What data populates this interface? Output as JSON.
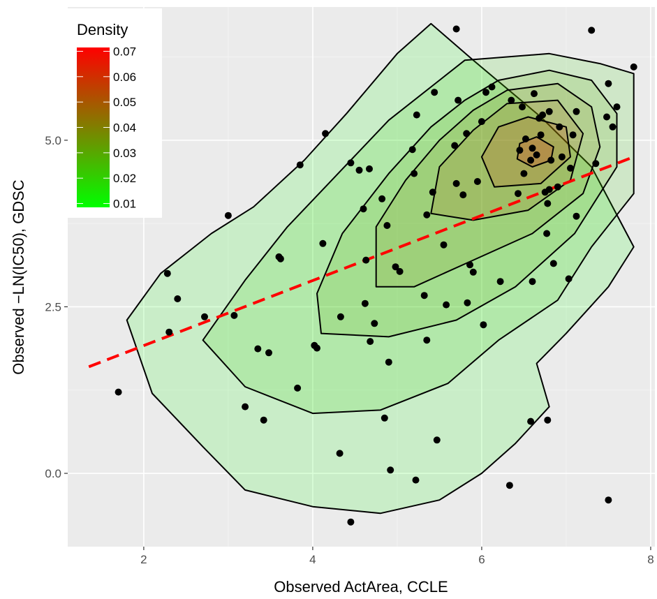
{
  "chart_data": {
    "type": "scatter",
    "title": "",
    "xlabel": "Observed ActArea, CCLE",
    "ylabel": "Observed −LN(IC50), GDSC",
    "xlim": [
      1.1,
      8.05
    ],
    "ylim": [
      -1.1,
      7.0
    ],
    "x_ticks": [
      2,
      4,
      6,
      8
    ],
    "x_tick_labels": [
      "2",
      "4",
      "6",
      "8"
    ],
    "y_ticks": [
      0.0,
      2.5,
      5.0
    ],
    "y_tick_labels": [
      "0.0",
      "2.5",
      "5.0"
    ],
    "grid": true,
    "background": "#ebebeb",
    "legend": {
      "title": "Density",
      "position": "top-left",
      "labels": [
        "0.07",
        "0.06",
        "0.05",
        "0.04",
        "0.03",
        "0.02",
        "0.01"
      ],
      "values": [
        0.07,
        0.06,
        0.05,
        0.04,
        0.03,
        0.02,
        0.01
      ],
      "range": [
        0.0085,
        0.0715
      ],
      "colors": {
        "low": "#00ff00",
        "high": "#ff0000"
      }
    },
    "regression_line": {
      "x": [
        1.35,
        7.8
      ],
      "y": [
        1.6,
        4.75
      ],
      "color": "#ff0000",
      "style": "dashed"
    },
    "density_contours": [
      {
        "level": 0.01,
        "points": [
          [
            5.4,
            6.75
          ],
          [
            5.9,
            6.2
          ],
          [
            6.7,
            5.35
          ],
          [
            7.3,
            4.6
          ],
          [
            7.8,
            3.4
          ],
          [
            7.5,
            2.8
          ],
          [
            7.0,
            2.1
          ],
          [
            6.65,
            1.65
          ],
          [
            6.8,
            1.0
          ],
          [
            6.4,
            0.45
          ],
          [
            6.0,
            0.0
          ],
          [
            5.5,
            -0.4
          ],
          [
            4.8,
            -0.6
          ],
          [
            4.0,
            -0.5
          ],
          [
            3.2,
            -0.25
          ],
          [
            2.7,
            0.4
          ],
          [
            2.1,
            1.2
          ],
          [
            1.8,
            2.3
          ],
          [
            2.2,
            3.0
          ],
          [
            2.8,
            3.6
          ],
          [
            3.3,
            4.0
          ],
          [
            3.9,
            4.7
          ],
          [
            4.4,
            5.4
          ],
          [
            5.0,
            6.3
          ]
        ]
      },
      {
        "level": 0.02,
        "points": [
          [
            5.8,
            6.2
          ],
          [
            6.8,
            6.3
          ],
          [
            7.4,
            6.15
          ],
          [
            7.8,
            6.0
          ],
          [
            7.8,
            4.2
          ],
          [
            7.3,
            3.4
          ],
          [
            6.9,
            2.6
          ],
          [
            6.2,
            2.0
          ],
          [
            5.6,
            1.35
          ],
          [
            4.8,
            0.95
          ],
          [
            4.0,
            0.9
          ],
          [
            3.2,
            1.3
          ],
          [
            2.7,
            2.0
          ],
          [
            3.2,
            2.9
          ],
          [
            3.7,
            3.7
          ],
          [
            4.3,
            4.5
          ],
          [
            4.9,
            5.3
          ],
          [
            5.4,
            5.8
          ]
        ]
      },
      {
        "level": 0.03,
        "points": [
          [
            6.2,
            5.9
          ],
          [
            6.8,
            6.05
          ],
          [
            7.3,
            5.9
          ],
          [
            7.6,
            5.4
          ],
          [
            7.6,
            4.6
          ],
          [
            7.1,
            3.6
          ],
          [
            6.4,
            2.8
          ],
          [
            5.7,
            2.3
          ],
          [
            4.9,
            2.05
          ],
          [
            4.1,
            2.1
          ],
          [
            4.05,
            2.7
          ],
          [
            4.35,
            3.6
          ],
          [
            4.9,
            4.5
          ],
          [
            5.4,
            5.2
          ],
          [
            5.8,
            5.6
          ]
        ]
      },
      {
        "level": 0.04,
        "points": [
          [
            6.3,
            5.75
          ],
          [
            6.9,
            5.85
          ],
          [
            7.3,
            5.5
          ],
          [
            7.4,
            4.9
          ],
          [
            7.2,
            4.2
          ],
          [
            6.6,
            3.6
          ],
          [
            5.9,
            3.2
          ],
          [
            5.2,
            2.8
          ],
          [
            4.75,
            2.8
          ],
          [
            4.75,
            3.7
          ],
          [
            5.1,
            4.4
          ],
          [
            5.5,
            5.0
          ],
          [
            5.9,
            5.45
          ]
        ]
      },
      {
        "level": 0.05,
        "points": [
          [
            6.3,
            5.55
          ],
          [
            6.9,
            5.6
          ],
          [
            7.2,
            5.1
          ],
          [
            7.05,
            4.4
          ],
          [
            6.55,
            3.95
          ],
          [
            5.9,
            3.8
          ],
          [
            5.4,
            3.9
          ],
          [
            5.5,
            4.6
          ],
          [
            5.9,
            5.15
          ]
        ]
      },
      {
        "level": 0.06,
        "points": [
          [
            6.55,
            5.35
          ],
          [
            7.0,
            5.2
          ],
          [
            7.05,
            4.75
          ],
          [
            6.7,
            4.35
          ],
          [
            6.15,
            4.3
          ],
          [
            6.0,
            4.75
          ],
          [
            6.2,
            5.2
          ]
        ]
      },
      {
        "level": 0.07,
        "points": [
          [
            6.65,
            5.05
          ],
          [
            6.85,
            4.9
          ],
          [
            6.82,
            4.7
          ],
          [
            6.6,
            4.6
          ],
          [
            6.42,
            4.72
          ],
          [
            6.45,
            4.95
          ]
        ]
      }
    ],
    "points": [
      [
        1.7,
        1.22
      ],
      [
        2.28,
        3.0
      ],
      [
        2.4,
        2.62
      ],
      [
        2.3,
        2.12
      ],
      [
        2.72,
        2.35
      ],
      [
        3.0,
        3.87
      ],
      [
        3.07,
        2.37
      ],
      [
        3.2,
        1.0
      ],
      [
        3.35,
        1.87
      ],
      [
        3.42,
        0.8
      ],
      [
        3.48,
        1.81
      ],
      [
        3.6,
        3.25
      ],
      [
        3.62,
        3.22
      ],
      [
        3.82,
        1.28
      ],
      [
        3.85,
        4.63
      ],
      [
        4.02,
        1.92
      ],
      [
        4.05,
        1.88
      ],
      [
        4.12,
        3.45
      ],
      [
        4.15,
        5.1
      ],
      [
        4.32,
        0.3
      ],
      [
        4.33,
        2.35
      ],
      [
        4.45,
        4.66
      ],
      [
        4.45,
        -0.73
      ],
      [
        4.55,
        4.55
      ],
      [
        4.6,
        3.97
      ],
      [
        4.62,
        2.55
      ],
      [
        4.63,
        3.2
      ],
      [
        4.67,
        4.57
      ],
      [
        4.68,
        1.98
      ],
      [
        4.73,
        2.25
      ],
      [
        4.82,
        4.12
      ],
      [
        4.85,
        0.83
      ],
      [
        4.88,
        3.72
      ],
      [
        4.9,
        1.67
      ],
      [
        4.92,
        0.05
      ],
      [
        4.98,
        3.1
      ],
      [
        5.03,
        3.03
      ],
      [
        5.18,
        4.86
      ],
      [
        5.2,
        4.5
      ],
      [
        5.22,
        -0.1
      ],
      [
        5.23,
        5.38
      ],
      [
        5.32,
        2.67
      ],
      [
        5.35,
        3.88
      ],
      [
        5.35,
        2.0
      ],
      [
        5.42,
        4.22
      ],
      [
        5.44,
        5.72
      ],
      [
        5.47,
        0.5
      ],
      [
        5.55,
        3.43
      ],
      [
        5.58,
        2.53
      ],
      [
        5.68,
        4.92
      ],
      [
        5.7,
        6.67
      ],
      [
        5.7,
        4.35
      ],
      [
        5.72,
        5.6
      ],
      [
        5.78,
        4.18
      ],
      [
        5.82,
        5.1
      ],
      [
        5.83,
        2.56
      ],
      [
        5.86,
        3.13
      ],
      [
        5.9,
        3.02
      ],
      [
        5.95,
        4.38
      ],
      [
        6.0,
        5.28
      ],
      [
        6.02,
        2.23
      ],
      [
        6.05,
        5.72
      ],
      [
        6.12,
        5.8
      ],
      [
        6.22,
        2.88
      ],
      [
        6.33,
        -0.18
      ],
      [
        6.35,
        5.6
      ],
      [
        6.43,
        4.2
      ],
      [
        6.45,
        4.85
      ],
      [
        6.48,
        5.5
      ],
      [
        6.5,
        4.5
      ],
      [
        6.52,
        5.02
      ],
      [
        6.58,
        4.7
      ],
      [
        6.58,
        0.78
      ],
      [
        6.6,
        2.88
      ],
      [
        6.6,
        4.88
      ],
      [
        6.62,
        5.7
      ],
      [
        6.65,
        4.78
      ],
      [
        6.68,
        5.33
      ],
      [
        6.7,
        5.08
      ],
      [
        6.72,
        5.38
      ],
      [
        6.75,
        4.22
      ],
      [
        6.77,
        3.6
      ],
      [
        6.78,
        4.05
      ],
      [
        6.78,
        0.8
      ],
      [
        6.8,
        4.26
      ],
      [
        6.8,
        5.43
      ],
      [
        6.82,
        4.7
      ],
      [
        6.85,
        3.15
      ],
      [
        6.9,
        4.3
      ],
      [
        6.92,
        5.2
      ],
      [
        6.95,
        4.75
      ],
      [
        7.03,
        2.92
      ],
      [
        7.05,
        4.58
      ],
      [
        7.08,
        5.08
      ],
      [
        7.12,
        3.86
      ],
      [
        7.12,
        5.43
      ],
      [
        7.3,
        6.65
      ],
      [
        7.35,
        4.65
      ],
      [
        7.48,
        5.35
      ],
      [
        7.5,
        5.85
      ],
      [
        7.5,
        -0.4
      ],
      [
        7.55,
        5.2
      ],
      [
        7.6,
        5.5
      ],
      [
        7.8,
        6.1
      ]
    ]
  }
}
